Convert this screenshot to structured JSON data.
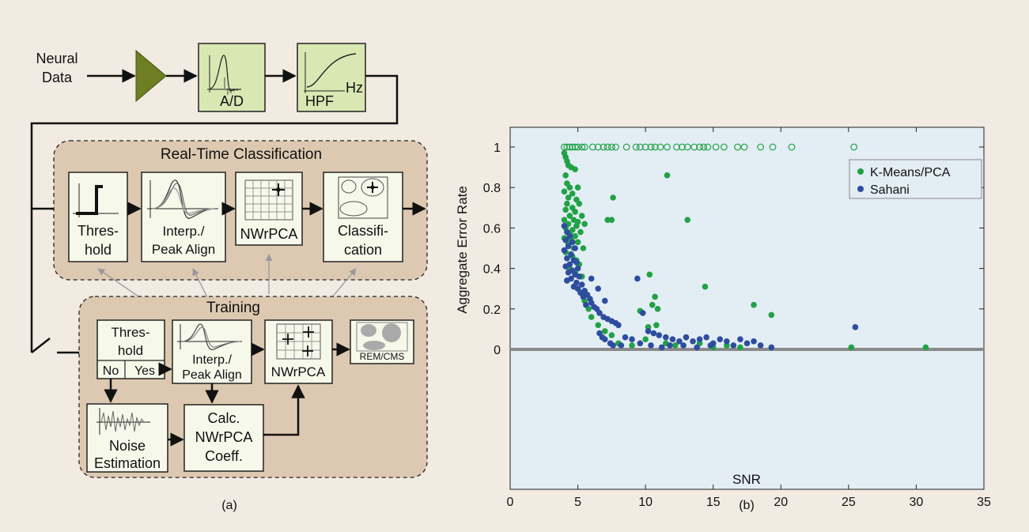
{
  "panel_a": {
    "caption": "(a)",
    "input_label_line1": "Neural",
    "input_label_line2": "Data",
    "adc_label": "A/D",
    "hpf_label": "HPF",
    "hpf_axis_label": "Hz",
    "realtime": {
      "title": "Real-Time Classification",
      "threshold_line1": "Thres-",
      "threshold_line2": "hold",
      "align_line1": "Interp./",
      "align_line2": "Peak Align",
      "nwrpca": "NWrPCA",
      "classify_line1": "Classifi-",
      "classify_line2": "cation"
    },
    "training": {
      "title": "Training",
      "threshold_line1": "Thres-",
      "threshold_line2": "hold",
      "threshold_no": "No",
      "threshold_yes": "Yes",
      "align_line1": "Interp./",
      "align_line2": "Peak Align",
      "nwrpca": "NWrPCA",
      "rem_cms": "REM/CMS",
      "noise_line1": "Noise",
      "noise_line2": "Estimation",
      "calc_line1": "Calc.",
      "calc_line2": "NWrPCA",
      "calc_line3": "Coeff."
    }
  },
  "panel_b": {
    "caption": "(b)"
  },
  "colors": {
    "background": "#f2ebe2",
    "block_fill": "#f6f8ea",
    "input_block_fill": "#d9e8b3",
    "amplifier": "#6f7d23",
    "region_fill": "#ddc9b1",
    "plot_bg": "#e3edf4",
    "kmeans": "#21a245",
    "sahani": "#2e4d9e",
    "zero_line": "#8a8a8a"
  },
  "chart_data": {
    "type": "scatter",
    "xlabel": "SNR",
    "ylabel": "Aggregate Error Rate",
    "xlim": [
      0,
      35
    ],
    "ylim": [
      -0.1,
      1.1
    ],
    "xticks": [
      "0",
      "5",
      "10",
      "15",
      "20",
      "25",
      "30",
      "35"
    ],
    "yticks": [
      "0",
      "0.2",
      "0.4",
      "0.6",
      "0.8",
      "1"
    ],
    "grid": false,
    "legend_position": "top-right",
    "reference_line_y": 0,
    "series": [
      {
        "name": "K-Means/PCA",
        "filled_points": [
          [
            4.0,
            0.97
          ],
          [
            4.1,
            0.95
          ],
          [
            4.2,
            0.93
          ],
          [
            4.3,
            0.91
          ],
          [
            4.1,
            0.86
          ],
          [
            4.5,
            0.9
          ],
          [
            4.8,
            0.89
          ],
          [
            5.0,
            0.8
          ],
          [
            4.2,
            0.82
          ],
          [
            4.4,
            0.8
          ],
          [
            4.0,
            0.78
          ],
          [
            4.6,
            0.77
          ],
          [
            4.3,
            0.75
          ],
          [
            4.9,
            0.74
          ],
          [
            5.1,
            0.72
          ],
          [
            4.2,
            0.72
          ],
          [
            4.6,
            0.7
          ],
          [
            4.1,
            0.69
          ],
          [
            4.8,
            0.68
          ],
          [
            5.3,
            0.66
          ],
          [
            4.4,
            0.66
          ],
          [
            4.0,
            0.64
          ],
          [
            4.7,
            0.64
          ],
          [
            5.0,
            0.63
          ],
          [
            5.5,
            0.62
          ],
          [
            4.3,
            0.62
          ],
          [
            4.9,
            0.61
          ],
          [
            4.1,
            0.6
          ],
          [
            4.6,
            0.59
          ],
          [
            5.2,
            0.58
          ],
          [
            4.4,
            0.57
          ],
          [
            4.8,
            0.56
          ],
          [
            4.0,
            0.55
          ],
          [
            4.5,
            0.54
          ],
          [
            5.0,
            0.53
          ],
          [
            4.3,
            0.52
          ],
          [
            4.7,
            0.5
          ],
          [
            5.4,
            0.5
          ],
          [
            4.1,
            0.48
          ],
          [
            4.6,
            0.46
          ],
          [
            4.9,
            0.44
          ],
          [
            5.1,
            0.42
          ],
          [
            4.4,
            0.4
          ],
          [
            4.8,
            0.38
          ],
          [
            5.3,
            0.36
          ],
          [
            4.2,
            0.34
          ],
          [
            5.0,
            0.3
          ],
          [
            5.6,
            0.27
          ],
          [
            5.5,
            0.24
          ],
          [
            5.8,
            0.2
          ],
          [
            7.2,
            0.64
          ],
          [
            7.5,
            0.64
          ],
          [
            7.6,
            0.75
          ],
          [
            11.6,
            0.86
          ],
          [
            13.1,
            0.64
          ],
          [
            10.3,
            0.37
          ],
          [
            10.7,
            0.26
          ],
          [
            10.5,
            0.22
          ],
          [
            10.9,
            0.2
          ],
          [
            14.4,
            0.31
          ],
          [
            9.6,
            0.19
          ],
          [
            10.2,
            0.11
          ],
          [
            10.8,
            0.12
          ],
          [
            11.5,
            0.03
          ],
          [
            18.0,
            0.22
          ],
          [
            19.3,
            0.17
          ],
          [
            12.2,
            0.02
          ],
          [
            9.0,
            0.02
          ],
          [
            8.0,
            0.03
          ],
          [
            7.5,
            0.07
          ],
          [
            7.0,
            0.09
          ],
          [
            6.5,
            0.12
          ],
          [
            6.0,
            0.16
          ],
          [
            13.0,
            0.06
          ],
          [
            14.0,
            0.03
          ],
          [
            15.0,
            0.01
          ],
          [
            16.0,
            0.02
          ],
          [
            10.0,
            0.05
          ],
          [
            17.0,
            0.01
          ],
          [
            25.2,
            0.01
          ],
          [
            30.7,
            0.01
          ]
        ],
        "open_points": [
          [
            4.0,
            1
          ],
          [
            4.2,
            1
          ],
          [
            4.4,
            1
          ],
          [
            4.6,
            1
          ],
          [
            4.8,
            1
          ],
          [
            5.0,
            1
          ],
          [
            5.3,
            1
          ],
          [
            5.5,
            1
          ],
          [
            6.1,
            1
          ],
          [
            6.5,
            1
          ],
          [
            6.9,
            1
          ],
          [
            7.2,
            1
          ],
          [
            7.5,
            1
          ],
          [
            7.8,
            1
          ],
          [
            8.6,
            1
          ],
          [
            9.3,
            1
          ],
          [
            9.6,
            1
          ],
          [
            10.0,
            1
          ],
          [
            10.4,
            1
          ],
          [
            10.7,
            1
          ],
          [
            11.1,
            1
          ],
          [
            11.6,
            1
          ],
          [
            12.3,
            1
          ],
          [
            12.7,
            1
          ],
          [
            13.1,
            1
          ],
          [
            13.6,
            1
          ],
          [
            14.0,
            1
          ],
          [
            14.3,
            1
          ],
          [
            14.6,
            1
          ],
          [
            15.2,
            1
          ],
          [
            15.8,
            1
          ],
          [
            16.8,
            1
          ],
          [
            17.3,
            1
          ],
          [
            18.5,
            1
          ],
          [
            19.4,
            1
          ],
          [
            20.8,
            1
          ],
          [
            25.4,
            1
          ]
        ]
      },
      {
        "name": "Sahani",
        "filled_points": [
          [
            4.0,
            0.61
          ],
          [
            4.2,
            0.58
          ],
          [
            4.4,
            0.56
          ],
          [
            4.1,
            0.54
          ],
          [
            4.6,
            0.53
          ],
          [
            4.3,
            0.51
          ],
          [
            4.8,
            0.5
          ],
          [
            4.0,
            0.49
          ],
          [
            4.5,
            0.47
          ],
          [
            4.2,
            0.45
          ],
          [
            4.7,
            0.44
          ],
          [
            4.9,
            0.43
          ],
          [
            4.4,
            0.42
          ],
          [
            4.1,
            0.41
          ],
          [
            5.0,
            0.4
          ],
          [
            4.6,
            0.39
          ],
          [
            4.3,
            0.38
          ],
          [
            4.8,
            0.37
          ],
          [
            5.1,
            0.36
          ],
          [
            4.5,
            0.35
          ],
          [
            4.2,
            0.34
          ],
          [
            4.9,
            0.33
          ],
          [
            5.3,
            0.32
          ],
          [
            4.7,
            0.31
          ],
          [
            5.0,
            0.3
          ],
          [
            5.5,
            0.29
          ],
          [
            5.2,
            0.28
          ],
          [
            5.7,
            0.27
          ],
          [
            5.4,
            0.26
          ],
          [
            5.9,
            0.25
          ],
          [
            6.0,
            0.23
          ],
          [
            5.6,
            0.22
          ],
          [
            6.2,
            0.21
          ],
          [
            6.4,
            0.2
          ],
          [
            6.6,
            0.18
          ],
          [
            6.9,
            0.16
          ],
          [
            7.2,
            0.15
          ],
          [
            7.5,
            0.14
          ],
          [
            7.8,
            0.13
          ],
          [
            8.0,
            0.12
          ],
          [
            6.0,
            0.35
          ],
          [
            6.5,
            0.3
          ],
          [
            7.0,
            0.24
          ],
          [
            9.4,
            0.35
          ],
          [
            9.8,
            0.18
          ],
          [
            10.2,
            0.09
          ],
          [
            10.6,
            0.08
          ],
          [
            11.0,
            0.07
          ],
          [
            11.5,
            0.06
          ],
          [
            12.0,
            0.05
          ],
          [
            12.5,
            0.04
          ],
          [
            13.0,
            0.06
          ],
          [
            13.5,
            0.04
          ],
          [
            14.0,
            0.05
          ],
          [
            14.5,
            0.06
          ],
          [
            15.0,
            0.03
          ],
          [
            15.5,
            0.05
          ],
          [
            16.0,
            0.04
          ],
          [
            16.5,
            0.02
          ],
          [
            17.0,
            0.05
          ],
          [
            17.5,
            0.03
          ],
          [
            18.0,
            0.04
          ],
          [
            18.5,
            0.02
          ],
          [
            19.3,
            0.01
          ],
          [
            8.5,
            0.06
          ],
          [
            9.0,
            0.05
          ],
          [
            9.6,
            0.03
          ],
          [
            10.4,
            0.02
          ],
          [
            11.2,
            0.01
          ],
          [
            11.8,
            0.02
          ],
          [
            12.8,
            0.02
          ],
          [
            13.8,
            0.01
          ],
          [
            14.8,
            0.02
          ],
          [
            25.5,
            0.11
          ],
          [
            7.4,
            0.03
          ],
          [
            8.2,
            0.02
          ],
          [
            7.0,
            0.05
          ],
          [
            6.6,
            0.08
          ],
          [
            6.8,
            0.06
          ],
          [
            7.6,
            0.02
          ]
        ]
      }
    ]
  }
}
